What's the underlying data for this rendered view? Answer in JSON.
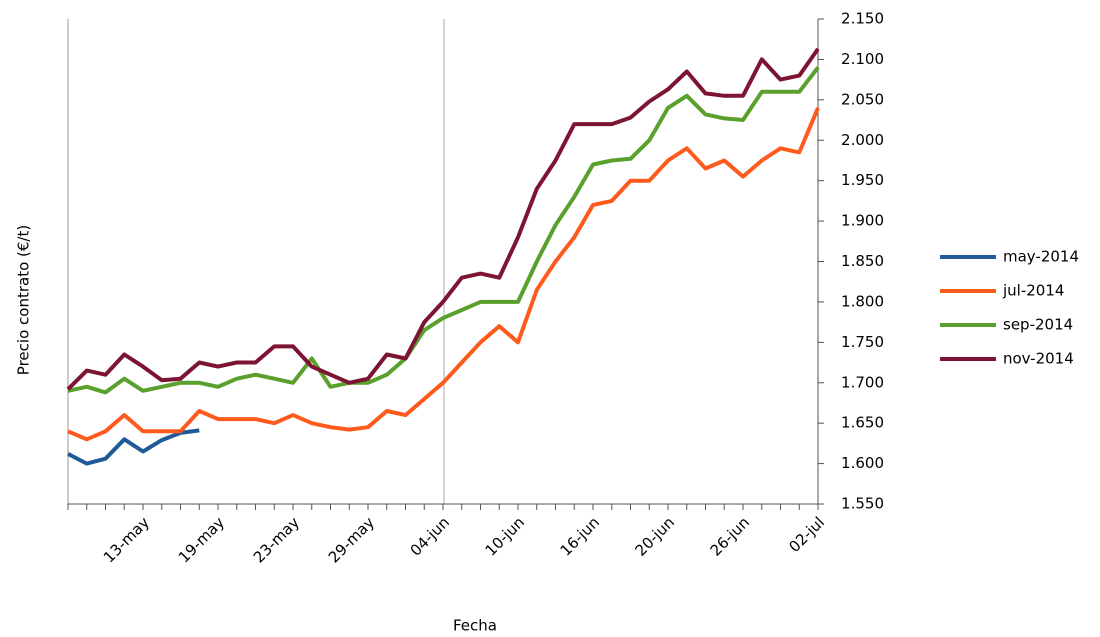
{
  "chart_data": {
    "type": "line",
    "x_label": "Fecha",
    "y_label": "Precio contrato (€/t)",
    "categories": [
      null,
      null,
      null,
      null,
      "13-may",
      null,
      null,
      null,
      "19-may",
      null,
      null,
      null,
      "23-may",
      null,
      null,
      null,
      "29-may",
      null,
      null,
      null,
      "04-jun",
      null,
      null,
      null,
      "10-jun",
      null,
      null,
      null,
      "16-jun",
      null,
      null,
      null,
      "20-jun",
      null,
      null,
      null,
      "26-jun",
      null,
      null,
      null,
      "02-jul"
    ],
    "series": [
      {
        "name": "may-2014",
        "color": "#1f5a96",
        "values": [
          1612,
          1600,
          1606,
          1630,
          1615,
          1629,
          1638,
          1641,
          null,
          null,
          null,
          null,
          null,
          null,
          null,
          null,
          null,
          null,
          null,
          null,
          null,
          null,
          null,
          null,
          null,
          null,
          null,
          null,
          null,
          null,
          null,
          null,
          null,
          null,
          null,
          null,
          null,
          null,
          null,
          null,
          null
        ]
      },
      {
        "name": "jul-2014",
        "color": "#ff5a1e",
        "values": [
          1640,
          1630,
          1640,
          1660,
          1640,
          1640,
          1640,
          1665,
          1655,
          1655,
          1655,
          1650,
          1660,
          1650,
          1645,
          1642,
          1645,
          1665,
          1660,
          1680,
          1700,
          1725,
          1750,
          1770,
          1750,
          1815,
          1850,
          1880,
          1920,
          1925,
          1950,
          1950,
          1975,
          1990,
          1965,
          1975,
          1955,
          1975,
          1990,
          1985,
          2040
        ]
      },
      {
        "name": "sep-2014",
        "color": "#5aa02d",
        "values": [
          1690,
          1695,
          1688,
          1705,
          1690,
          1695,
          1700,
          1700,
          1695,
          1705,
          1710,
          1705,
          1700,
          1730,
          1695,
          1700,
          1700,
          1710,
          1730,
          1765,
          1780,
          1790,
          1800,
          1800,
          1800,
          1850,
          1895,
          1930,
          1970,
          1975,
          1977,
          2000,
          2040,
          2055,
          2032,
          2027,
          2025,
          2060,
          2060,
          2060,
          2090
        ]
      },
      {
        "name": "nov-2014",
        "color": "#7d1432",
        "values": [
          1692,
          1715,
          1710,
          1735,
          1720,
          1703,
          1705,
          1725,
          1720,
          1725,
          1725,
          1745,
          1745,
          1720,
          1710,
          1700,
          1705,
          1735,
          1730,
          1775,
          1800,
          1830,
          1835,
          1830,
          1880,
          1940,
          1975,
          2020,
          2020,
          2020,
          2028,
          2048,
          2063,
          2085,
          2058,
          2055,
          2055,
          2100,
          2075,
          2080,
          2113
        ]
      }
    ],
    "ylim": [
      1550,
      2150
    ],
    "yticks": [
      {
        "value": 1550,
        "label": "1.550"
      },
      {
        "value": 1600,
        "label": "1.600"
      },
      {
        "value": 1650,
        "label": "1.650"
      },
      {
        "value": 1700,
        "label": "1.700"
      },
      {
        "value": 1750,
        "label": "1.750"
      },
      {
        "value": 1800,
        "label": "1.800"
      },
      {
        "value": 1850,
        "label": "1.850"
      },
      {
        "value": 1900,
        "label": "1.900"
      },
      {
        "value": 1950,
        "label": "1.950"
      },
      {
        "value": 2000,
        "label": "2.000"
      },
      {
        "value": 2050,
        "label": "2.050"
      },
      {
        "value": 2100,
        "label": "2.100"
      },
      {
        "value": 2150,
        "label": "2.150"
      }
    ],
    "legend": "right"
  }
}
